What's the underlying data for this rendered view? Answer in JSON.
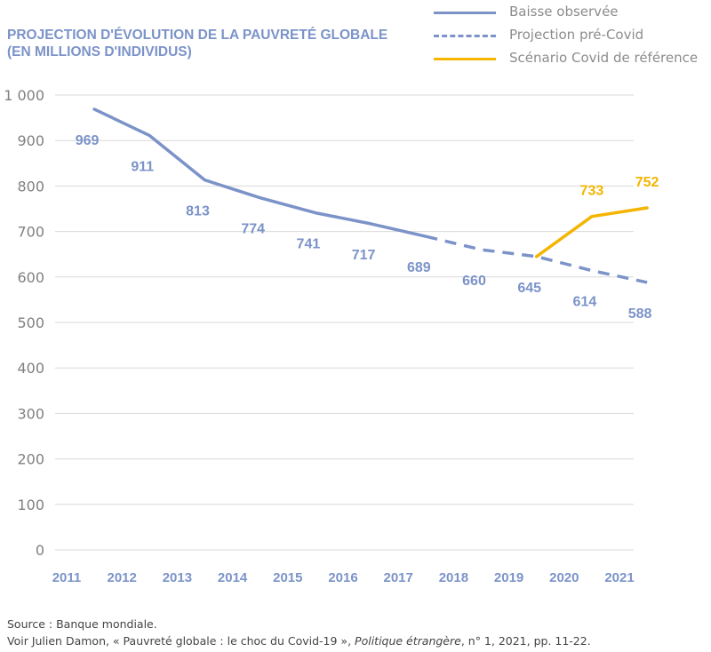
{
  "title_line1": "PROJECTION D'ÉVOLUTION DE LA PAUVRETÉ GLOBALE",
  "title_line2": "(EN MILLIONS D'INDIVIDUS)",
  "legend": [
    {
      "label": "Baisse observée",
      "style": "solid",
      "color": "#7b93c8"
    },
    {
      "label": "Projection pré-Covid",
      "style": "dashed",
      "color": "#7b93c8"
    },
    {
      "label": "Scénario Covid de référence",
      "style": "solid",
      "color": "#f4b400"
    }
  ],
  "footer": {
    "line1": "Source : Banque mondiale.",
    "line2_a": "Voir Julien Damon, « Pauvreté globale : le choc du Covid-19 », ",
    "line2_b": "Politique étrangère",
    "line2_c": ", n° 1, 2021, pp. 11-22."
  },
  "chart_data": {
    "type": "line",
    "title": "PROJECTION D'ÉVOLUTION DE LA PAUVRETÉ GLOBALE (EN MILLIONS D'INDIVIDUS)",
    "x_tick_labels": [
      "2011",
      "2012",
      "2013",
      "2014",
      "2015",
      "2016",
      "2017",
      "2018",
      "2019",
      "2020",
      "2021"
    ],
    "y_tick_labels": [
      "0",
      "100",
      "200",
      "300",
      "400",
      "500",
      "600",
      "700",
      "800",
      "900",
      "1 000"
    ],
    "ylim": [
      0,
      1000
    ],
    "xlim": [
      2011,
      2021
    ],
    "grid": "horizontal",
    "legend_position": "top-right",
    "series": [
      {
        "name": "Baisse observée",
        "style": "solid",
        "color": "#7b93c8",
        "x": [
          2011.5,
          2012.5,
          2013.5,
          2014.5,
          2015.5,
          2016.5,
          2017.5
        ],
        "y": [
          969,
          911,
          813,
          774,
          741,
          717,
          689
        ]
      },
      {
        "name": "Projection pré-Covid",
        "style": "dashed",
        "color": "#7b93c8",
        "x": [
          2017.5,
          2018.5,
          2019.5,
          2020.5,
          2021.5
        ],
        "y": [
          689,
          660,
          645,
          614,
          588
        ]
      },
      {
        "name": "Scénario Covid de référence",
        "style": "solid",
        "color": "#f4b400",
        "x": [
          2019.5,
          2020.5,
          2021.5
        ],
        "y": [
          645,
          733,
          752
        ]
      }
    ],
    "data_labels": [
      {
        "x": 2011.5,
        "value": "969",
        "series": "Baisse observée"
      },
      {
        "x": 2012.5,
        "value": "911",
        "series": "Baisse observée"
      },
      {
        "x": 2013.5,
        "value": "813",
        "series": "Baisse observée"
      },
      {
        "x": 2014.5,
        "value": "774",
        "series": "Baisse observée"
      },
      {
        "x": 2015.5,
        "value": "741",
        "series": "Baisse observée"
      },
      {
        "x": 2016.5,
        "value": "717",
        "series": "Baisse observée"
      },
      {
        "x": 2017.5,
        "value": "689",
        "series": "Baisse observée"
      },
      {
        "x": 2018.5,
        "value": "660",
        "series": "Projection pré-Covid"
      },
      {
        "x": 2019.5,
        "value": "645",
        "series": "Projection pré-Covid"
      },
      {
        "x": 2020.5,
        "value": "614",
        "series": "Projection pré-Covid"
      },
      {
        "x": 2021.5,
        "value": "588",
        "series": "Projection pré-Covid"
      },
      {
        "x": 2020.5,
        "value": "733",
        "series": "Scénario Covid de référence"
      },
      {
        "x": 2021.5,
        "value": "752",
        "series": "Scénario Covid de référence"
      }
    ]
  }
}
